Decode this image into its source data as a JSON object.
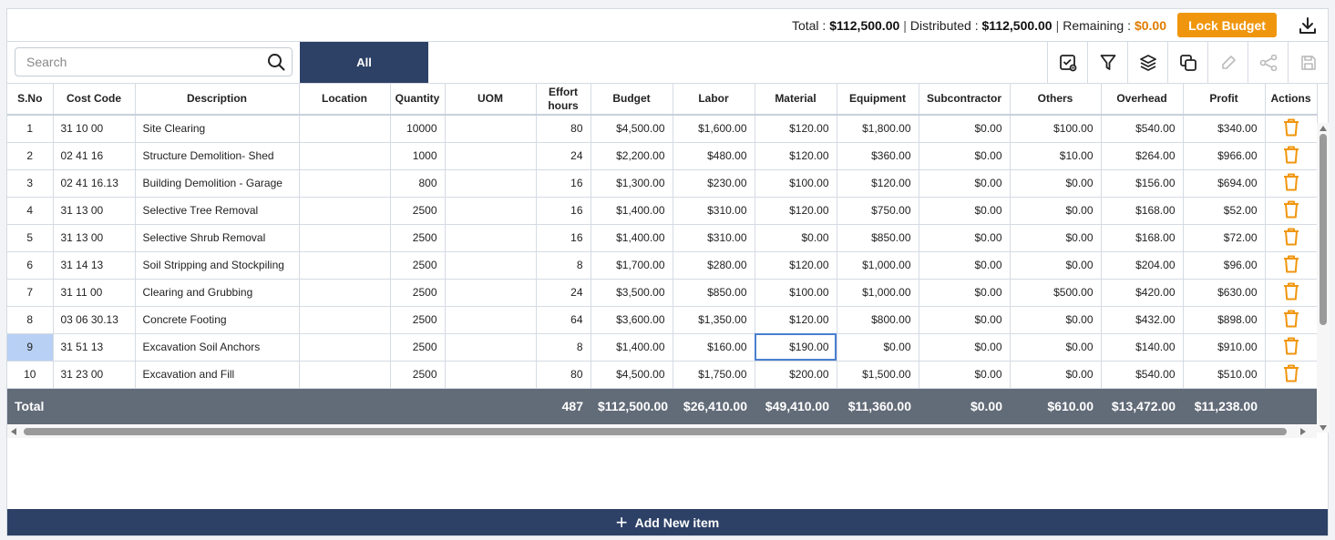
{
  "summary": {
    "total_label": "Total :",
    "total_value": "$112,500.00",
    "distributed_label": "Distributed :",
    "distributed_value": "$112,500.00",
    "remaining_label": "Remaining :",
    "remaining_value": "$0.00",
    "lock_button": "Lock Budget"
  },
  "search": {
    "placeholder": "Search",
    "value": ""
  },
  "tabs": {
    "all": "All"
  },
  "toolbar_icons": [
    "checklist-icon",
    "filter-icon",
    "layers-icon",
    "copy-icon",
    "edit-icon",
    "share-icon",
    "save-icon"
  ],
  "columns": [
    "S.No",
    "Cost Code",
    "Description",
    "Location",
    "Quantity",
    "UOM",
    "Effort hours",
    "Budget",
    "Labor",
    "Material",
    "Equipment",
    "Subcontractor",
    "Others",
    "Overhead",
    "Profit",
    "Actions"
  ],
  "rows": [
    {
      "sno": "1",
      "code": "31 10 00",
      "desc": "Site Clearing",
      "loc": "",
      "qty": "10000",
      "uom": "",
      "hours": "80",
      "budget": "$4,500.00",
      "labor": "$1,600.00",
      "material": "$120.00",
      "equipment": "$1,800.00",
      "sub": "$0.00",
      "others": "$100.00",
      "overhead": "$540.00",
      "profit": "$340.00"
    },
    {
      "sno": "2",
      "code": "02 41 16",
      "desc": "Structure Demolition- Shed",
      "loc": "",
      "qty": "1000",
      "uom": "",
      "hours": "24",
      "budget": "$2,200.00",
      "labor": "$480.00",
      "material": "$120.00",
      "equipment": "$360.00",
      "sub": "$0.00",
      "others": "$10.00",
      "overhead": "$264.00",
      "profit": "$966.00"
    },
    {
      "sno": "3",
      "code": "02 41 16.13",
      "desc": "Building Demolition - Garage",
      "loc": "",
      "qty": "800",
      "uom": "",
      "hours": "16",
      "budget": "$1,300.00",
      "labor": "$230.00",
      "material": "$100.00",
      "equipment": "$120.00",
      "sub": "$0.00",
      "others": "$0.00",
      "overhead": "$156.00",
      "profit": "$694.00"
    },
    {
      "sno": "4",
      "code": "31 13 00",
      "desc": "Selective Tree Removal",
      "loc": "",
      "qty": "2500",
      "uom": "",
      "hours": "16",
      "budget": "$1,400.00",
      "labor": "$310.00",
      "material": "$120.00",
      "equipment": "$750.00",
      "sub": "$0.00",
      "others": "$0.00",
      "overhead": "$168.00",
      "profit": "$52.00"
    },
    {
      "sno": "5",
      "code": "31 13 00",
      "desc": "Selective Shrub Removal",
      "loc": "",
      "qty": "2500",
      "uom": "",
      "hours": "16",
      "budget": "$1,400.00",
      "labor": "$310.00",
      "material": "$0.00",
      "equipment": "$850.00",
      "sub": "$0.00",
      "others": "$0.00",
      "overhead": "$168.00",
      "profit": "$72.00"
    },
    {
      "sno": "6",
      "code": "31 14 13",
      "desc": "Soil Stripping and Stockpiling",
      "loc": "",
      "qty": "2500",
      "uom": "",
      "hours": "8",
      "budget": "$1,700.00",
      "labor": "$280.00",
      "material": "$120.00",
      "equipment": "$1,000.00",
      "sub": "$0.00",
      "others": "$0.00",
      "overhead": "$204.00",
      "profit": "$96.00"
    },
    {
      "sno": "7",
      "code": "31 11 00",
      "desc": "Clearing and Grubbing",
      "loc": "",
      "qty": "2500",
      "uom": "",
      "hours": "24",
      "budget": "$3,500.00",
      "labor": "$850.00",
      "material": "$100.00",
      "equipment": "$1,000.00",
      "sub": "$0.00",
      "others": "$500.00",
      "overhead": "$420.00",
      "profit": "$630.00"
    },
    {
      "sno": "8",
      "code": "03 06 30.13",
      "desc": "Concrete Footing",
      "loc": "",
      "qty": "2500",
      "uom": "",
      "hours": "64",
      "budget": "$3,600.00",
      "labor": "$1,350.00",
      "material": "$120.00",
      "equipment": "$800.00",
      "sub": "$0.00",
      "others": "$0.00",
      "overhead": "$432.00",
      "profit": "$898.00"
    },
    {
      "sno": "9",
      "code": "31 51 13",
      "desc": "Excavation Soil Anchors",
      "loc": "",
      "qty": "2500",
      "uom": "",
      "hours": "8",
      "budget": "$1,400.00",
      "labor": "$160.00",
      "material": "$190.00",
      "equipment": "$0.00",
      "sub": "$0.00",
      "others": "$0.00",
      "overhead": "$140.00",
      "profit": "$910.00"
    },
    {
      "sno": "10",
      "code": "31 23 00",
      "desc": "Excavation and Fill",
      "loc": "",
      "qty": "2500",
      "uom": "",
      "hours": "80",
      "budget": "$4,500.00",
      "labor": "$1,750.00",
      "material": "$200.00",
      "equipment": "$1,500.00",
      "sub": "$0.00",
      "others": "$0.00",
      "overhead": "$540.00",
      "profit": "$510.00"
    }
  ],
  "totals": {
    "label": "Total",
    "hours": "487",
    "budget": "$112,500.00",
    "labor": "$26,410.00",
    "material": "$49,410.00",
    "equipment": "$11,360.00",
    "sub": "$0.00",
    "others": "$610.00",
    "overhead": "$13,472.00",
    "profit": "$11,238.00"
  },
  "add_button": "Add New item",
  "colors": {
    "navy": "#2d4166",
    "orange": "#f0960e",
    "trash": "#f0960e",
    "remaining": "#e07b00"
  }
}
